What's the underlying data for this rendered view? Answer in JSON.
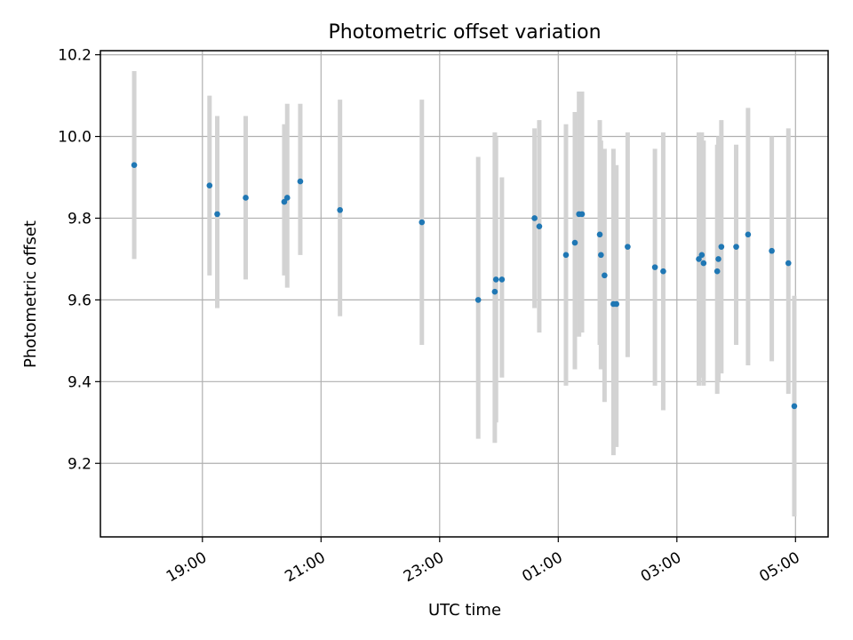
{
  "chart_data": {
    "type": "scatter",
    "title": "Photometric offset variation",
    "xlabel": "UTC time",
    "ylabel": "Photometric offset",
    "x_unit": "hours UTC (values past 24 are times after midnight of the following day)",
    "xlim": [
      17.28,
      29.55
    ],
    "ylim": [
      9.02,
      10.21
    ],
    "yticks": [
      9.2,
      9.4,
      9.6,
      9.8,
      10.0,
      10.2
    ],
    "ytick_labels": [
      "9.2",
      "9.4",
      "9.6",
      "9.8",
      "10.0",
      "10.2"
    ],
    "xticks": [
      19,
      21,
      23,
      25,
      27,
      29
    ],
    "xtick_labels": [
      "19:00",
      "21:00",
      "23:00",
      "01:00",
      "03:00",
      "05:00"
    ],
    "grid": true,
    "legend": "none",
    "colors": {
      "point": "#1f77b4",
      "errorbar": "#d3d3d3",
      "grid": "#b0b0b0"
    },
    "points": [
      {
        "x": 17.85,
        "y": 9.93,
        "lo": 9.7,
        "hi": 10.16
      },
      {
        "x": 19.12,
        "y": 9.88,
        "lo": 9.66,
        "hi": 10.1
      },
      {
        "x": 19.25,
        "y": 9.81,
        "lo": 9.58,
        "hi": 10.05
      },
      {
        "x": 19.73,
        "y": 9.85,
        "lo": 9.65,
        "hi": 10.05
      },
      {
        "x": 20.38,
        "y": 9.84,
        "lo": 9.66,
        "hi": 10.03
      },
      {
        "x": 20.43,
        "y": 9.85,
        "lo": 9.63,
        "hi": 10.08
      },
      {
        "x": 20.65,
        "y": 9.89,
        "lo": 9.71,
        "hi": 10.08
      },
      {
        "x": 21.32,
        "y": 9.82,
        "lo": 9.56,
        "hi": 10.09
      },
      {
        "x": 22.7,
        "y": 9.79,
        "lo": 9.49,
        "hi": 10.09
      },
      {
        "x": 23.65,
        "y": 9.6,
        "lo": 9.26,
        "hi": 9.95
      },
      {
        "x": 23.93,
        "y": 9.62,
        "lo": 9.25,
        "hi": 10.01
      },
      {
        "x": 23.95,
        "y": 9.65,
        "lo": 9.3,
        "hi": 10.0
      },
      {
        "x": 24.05,
        "y": 9.65,
        "lo": 9.41,
        "hi": 9.9
      },
      {
        "x": 24.6,
        "y": 9.8,
        "lo": 9.58,
        "hi": 10.02
      },
      {
        "x": 24.68,
        "y": 9.78,
        "lo": 9.52,
        "hi": 10.04
      },
      {
        "x": 25.13,
        "y": 9.71,
        "lo": 9.39,
        "hi": 10.03
      },
      {
        "x": 25.28,
        "y": 9.74,
        "lo": 9.43,
        "hi": 10.06
      },
      {
        "x": 25.35,
        "y": 9.81,
        "lo": 9.51,
        "hi": 10.11
      },
      {
        "x": 25.4,
        "y": 9.81,
        "lo": 9.52,
        "hi": 10.11
      },
      {
        "x": 25.7,
        "y": 9.76,
        "lo": 9.49,
        "hi": 10.04
      },
      {
        "x": 25.72,
        "y": 9.71,
        "lo": 9.43,
        "hi": 9.99
      },
      {
        "x": 25.78,
        "y": 9.66,
        "lo": 9.35,
        "hi": 9.97
      },
      {
        "x": 25.93,
        "y": 9.59,
        "lo": 9.22,
        "hi": 9.97
      },
      {
        "x": 25.98,
        "y": 9.59,
        "lo": 9.24,
        "hi": 9.93
      },
      {
        "x": 26.17,
        "y": 9.73,
        "lo": 9.46,
        "hi": 10.01
      },
      {
        "x": 26.63,
        "y": 9.68,
        "lo": 9.39,
        "hi": 9.97
      },
      {
        "x": 26.77,
        "y": 9.67,
        "lo": 9.33,
        "hi": 10.01
      },
      {
        "x": 27.37,
        "y": 9.7,
        "lo": 9.39,
        "hi": 10.01
      },
      {
        "x": 27.42,
        "y": 9.71,
        "lo": 9.41,
        "hi": 10.01
      },
      {
        "x": 27.45,
        "y": 9.69,
        "lo": 9.39,
        "hi": 9.99
      },
      {
        "x": 27.68,
        "y": 9.67,
        "lo": 9.37,
        "hi": 9.98
      },
      {
        "x": 27.7,
        "y": 9.7,
        "lo": 9.4,
        "hi": 10.0
      },
      {
        "x": 27.75,
        "y": 9.73,
        "lo": 9.42,
        "hi": 10.04
      },
      {
        "x": 28.0,
        "y": 9.73,
        "lo": 9.49,
        "hi": 9.98
      },
      {
        "x": 28.2,
        "y": 9.76,
        "lo": 9.44,
        "hi": 10.07
      },
      {
        "x": 28.6,
        "y": 9.72,
        "lo": 9.45,
        "hi": 10.0
      },
      {
        "x": 28.88,
        "y": 9.69,
        "lo": 9.37,
        "hi": 10.02
      },
      {
        "x": 28.98,
        "y": 9.34,
        "lo": 9.07,
        "hi": 9.61
      }
    ]
  }
}
